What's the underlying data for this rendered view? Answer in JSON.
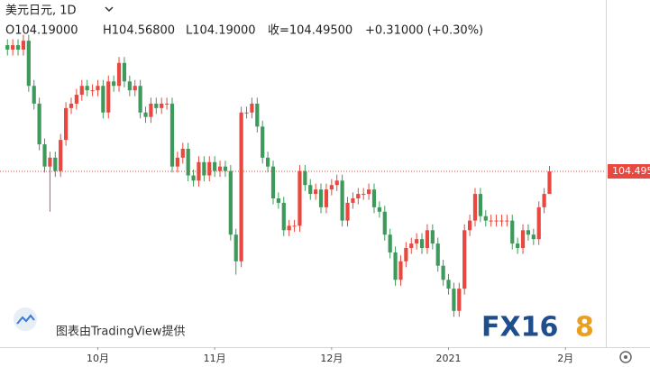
{
  "header": {
    "symbol": "美元日元, 1D",
    "open": "O104.19000",
    "high": "H104.56800",
    "low": "L104.19000",
    "close": "收=104.49500",
    "change": "+0.31000 (+0.30%)"
  },
  "watermark": "图表由TradingView提供",
  "logo": {
    "left": "FX16",
    "right": "8"
  },
  "chart_data": {
    "type": "candlestick",
    "up_color": "#e8483f",
    "down_color": "#3d9a5a",
    "last_price": 104.495,
    "xlim": [
      -1.4,
      112.6
    ],
    "xticks": [
      {
        "value": 17,
        "label": "10月"
      },
      {
        "value": 39,
        "label": "11月"
      },
      {
        "value": 61,
        "label": "12月"
      },
      {
        "value": 83,
        "label": "2021"
      },
      {
        "value": 105,
        "label": "2月"
      }
    ],
    "ylim": [
      102.12,
      106.81
    ],
    "open": [
      106.2,
      106.14,
      106.2,
      106.14,
      106.26,
      105.65,
      105.41,
      104.86,
      104.56,
      104.68,
      104.5,
      104.92,
      105.35,
      105.41,
      105.53,
      105.65,
      105.59,
      105.59,
      105.65,
      105.29,
      105.71,
      105.65,
      105.96,
      105.71,
      105.59,
      105.65,
      105.29,
      105.23,
      105.41,
      105.35,
      105.41,
      105.41,
      104.56,
      104.68,
      104.8,
      104.44,
      104.37,
      104.62,
      104.44,
      104.62,
      104.5,
      104.56,
      104.5,
      103.64,
      103.28,
      105.29,
      105.29,
      105.41,
      105.1,
      104.68,
      104.56,
      104.13,
      104.07,
      103.7,
      103.76,
      103.76,
      104.5,
      104.31,
      104.19,
      104.25,
      104.01,
      104.25,
      104.31,
      104.37,
      103.83,
      104.07,
      104.13,
      104.19,
      104.19,
      104.25,
      104.01,
      103.95,
      103.64,
      103.4,
      103.03,
      103.28,
      103.46,
      103.52,
      103.58,
      103.46,
      103.7,
      103.52,
      103.22,
      103.03,
      102.91,
      102.61,
      102.91,
      103.7,
      103.83,
      104.19,
      103.89,
      103.83,
      103.83,
      103.83,
      103.83,
      103.83,
      103.52,
      103.46,
      103.7,
      103.64,
      103.58,
      104.01,
      104.19
    ],
    "high": [
      106.28,
      106.28,
      106.28,
      106.34,
      106.34,
      105.73,
      105.49,
      104.94,
      104.76,
      104.76,
      105.0,
      105.43,
      105.49,
      105.61,
      105.73,
      105.73,
      105.67,
      105.73,
      105.73,
      105.79,
      105.79,
      106.04,
      106.04,
      105.79,
      105.73,
      105.73,
      105.37,
      105.49,
      105.49,
      105.49,
      105.49,
      105.49,
      104.76,
      104.88,
      104.88,
      104.52,
      104.7,
      104.7,
      104.7,
      104.7,
      104.64,
      104.64,
      104.58,
      103.72,
      105.37,
      105.37,
      105.49,
      105.49,
      105.18,
      104.76,
      104.64,
      104.21,
      104.15,
      103.84,
      103.84,
      104.58,
      104.58,
      104.39,
      104.33,
      104.33,
      104.33,
      104.39,
      104.45,
      104.45,
      104.15,
      104.21,
      104.27,
      104.27,
      104.33,
      104.33,
      104.09,
      104.03,
      103.72,
      103.48,
      103.36,
      103.54,
      103.6,
      103.66,
      103.66,
      103.78,
      103.78,
      103.6,
      103.3,
      103.11,
      102.99,
      102.99,
      103.78,
      103.91,
      104.27,
      104.27,
      103.97,
      103.91,
      103.91,
      103.91,
      103.91,
      103.91,
      103.6,
      103.78,
      103.78,
      103.72,
      104.09,
      104.27,
      104.568
    ],
    "low": [
      106.06,
      106.06,
      106.06,
      106.06,
      105.57,
      105.33,
      104.78,
      104.48,
      103.95,
      104.42,
      104.42,
      104.84,
      105.27,
      105.33,
      105.45,
      105.51,
      105.51,
      105.51,
      105.21,
      105.21,
      105.57,
      105.57,
      105.63,
      105.51,
      105.51,
      105.21,
      105.15,
      105.15,
      105.27,
      105.27,
      105.33,
      104.48,
      104.48,
      104.6,
      104.36,
      104.29,
      104.29,
      104.36,
      104.36,
      104.42,
      104.42,
      104.42,
      103.56,
      103.1,
      103.2,
      105.21,
      105.21,
      105.02,
      104.6,
      104.48,
      104.05,
      103.99,
      103.62,
      103.62,
      103.68,
      103.68,
      104.23,
      104.11,
      104.11,
      103.93,
      103.93,
      104.17,
      104.23,
      103.75,
      103.75,
      103.99,
      104.05,
      104.11,
      104.11,
      103.93,
      103.87,
      103.56,
      103.32,
      102.95,
      102.95,
      103.2,
      103.38,
      103.44,
      103.38,
      103.38,
      103.44,
      103.14,
      102.95,
      102.83,
      102.53,
      102.53,
      102.83,
      103.62,
      103.75,
      103.81,
      103.75,
      103.75,
      103.75,
      103.75,
      103.75,
      103.44,
      103.38,
      103.38,
      103.56,
      103.5,
      103.5,
      103.93,
      104.19
    ],
    "close": [
      106.14,
      106.2,
      106.14,
      106.26,
      105.65,
      105.41,
      104.86,
      104.56,
      104.68,
      104.5,
      104.92,
      105.35,
      105.41,
      105.53,
      105.65,
      105.59,
      105.59,
      105.65,
      105.29,
      105.71,
      105.65,
      105.96,
      105.71,
      105.59,
      105.65,
      105.29,
      105.23,
      105.41,
      105.35,
      105.41,
      105.41,
      104.56,
      104.68,
      104.8,
      104.44,
      104.37,
      104.62,
      104.44,
      104.62,
      104.5,
      104.56,
      104.5,
      103.64,
      103.28,
      105.29,
      105.29,
      105.41,
      105.1,
      104.68,
      104.56,
      104.13,
      104.07,
      103.7,
      103.76,
      103.76,
      104.5,
      104.31,
      104.19,
      104.25,
      104.01,
      104.25,
      104.31,
      104.37,
      103.83,
      104.07,
      104.13,
      104.19,
      104.19,
      104.25,
      104.01,
      103.95,
      103.64,
      103.4,
      103.03,
      103.28,
      103.46,
      103.52,
      103.58,
      103.46,
      103.7,
      103.52,
      103.22,
      103.03,
      102.91,
      102.61,
      102.91,
      103.7,
      103.83,
      104.19,
      103.89,
      103.83,
      103.83,
      103.83,
      103.83,
      103.83,
      103.52,
      103.46,
      103.7,
      103.64,
      103.58,
      104.01,
      104.19,
      104.495
    ]
  }
}
